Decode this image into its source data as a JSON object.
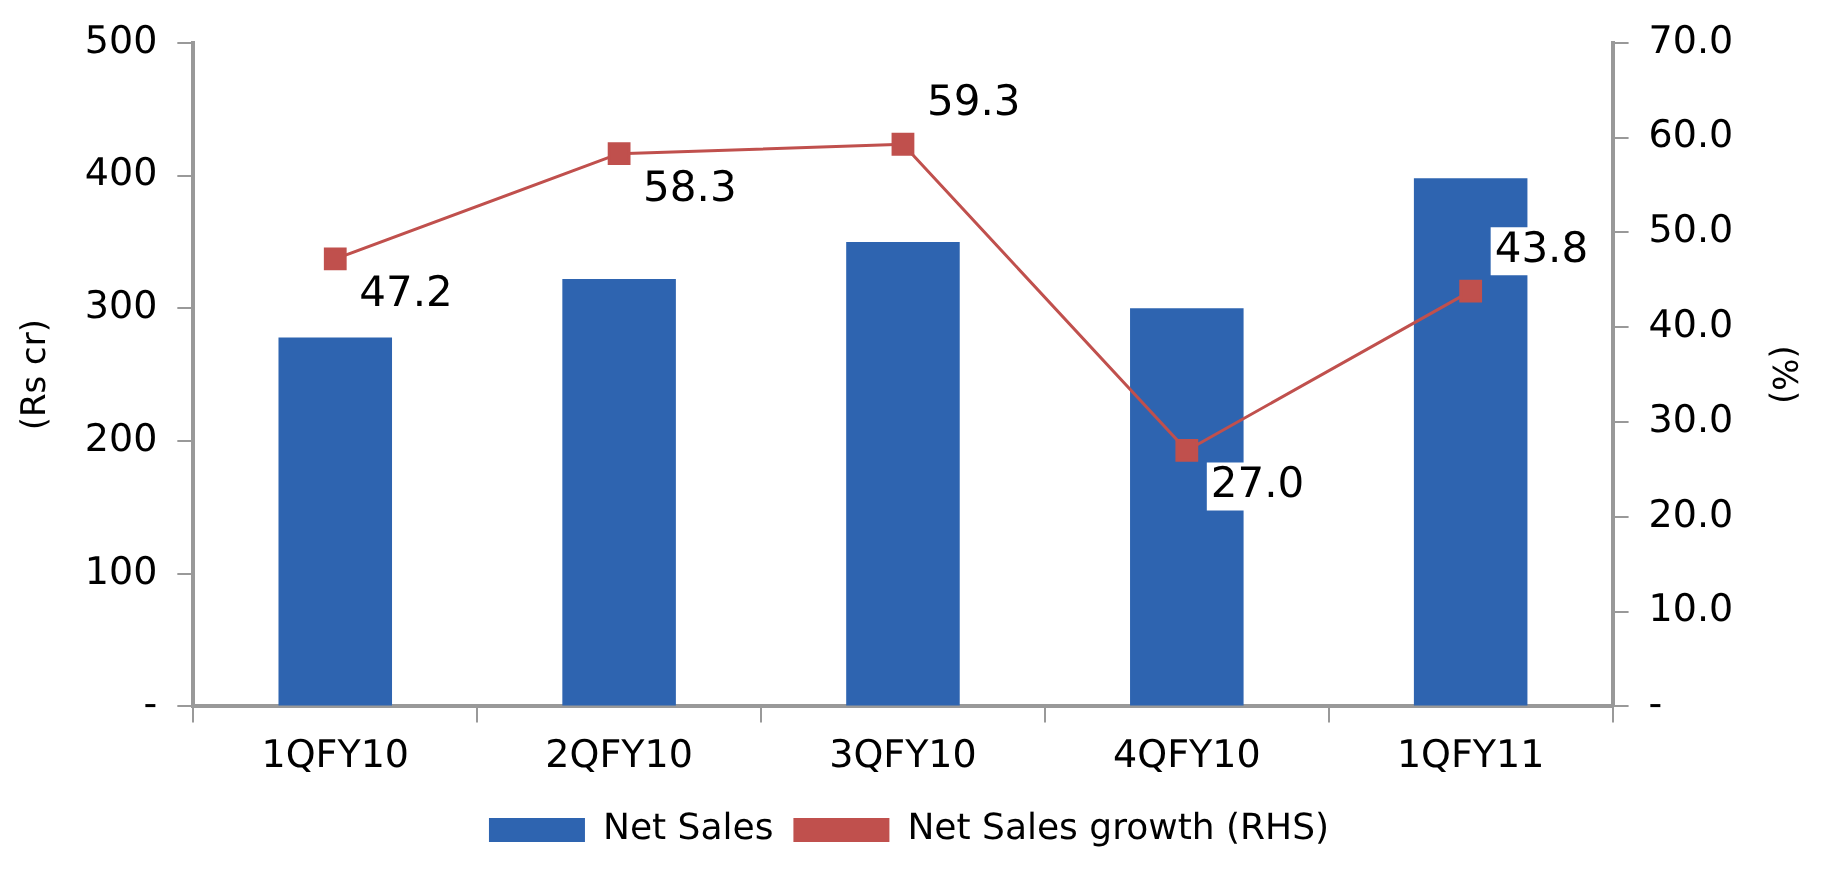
{
  "chart_data": {
    "type": "bar",
    "categories": [
      "1QFY10",
      "2QFY10",
      "3QFY10",
      "4QFY10",
      "1QFY11"
    ],
    "ylabel": "(Rs cr)",
    "y2label": "(%)",
    "series": [
      {
        "name": "Net Sales",
        "color": "#2e64b0",
        "values": [
          278,
          322,
          350,
          300,
          398
        ]
      },
      {
        "name": "Net Sales growth (RHS)",
        "type": "line",
        "axis": "y2",
        "color": "#c0504d",
        "values": [
          47.2,
          58.3,
          59.3,
          27.0,
          43.8
        ],
        "value_labels": [
          "47.2",
          "58.3",
          "59.3",
          "27.0",
          "43.8"
        ]
      }
    ],
    "ylim": [
      0,
      500
    ],
    "yticks": [
      {
        "value": 0,
        "label": "-"
      },
      100,
      200,
      300,
      400,
      500
    ],
    "y2lim": [
      0,
      70
    ],
    "y2ticks": [
      {
        "value": 0,
        "label": "-"
      },
      {
        "value": 10,
        "label": "10.0"
      },
      {
        "value": 20,
        "label": "20.0"
      },
      {
        "value": 30,
        "label": "30.0"
      },
      {
        "value": 40,
        "label": "40.0"
      },
      {
        "value": 50,
        "label": "50.0"
      },
      {
        "value": 60,
        "label": "60.0"
      },
      {
        "value": 70,
        "label": "70.0"
      }
    ],
    "grid": false,
    "legend": "bottom",
    "marker": "square",
    "line_style": "solid"
  }
}
